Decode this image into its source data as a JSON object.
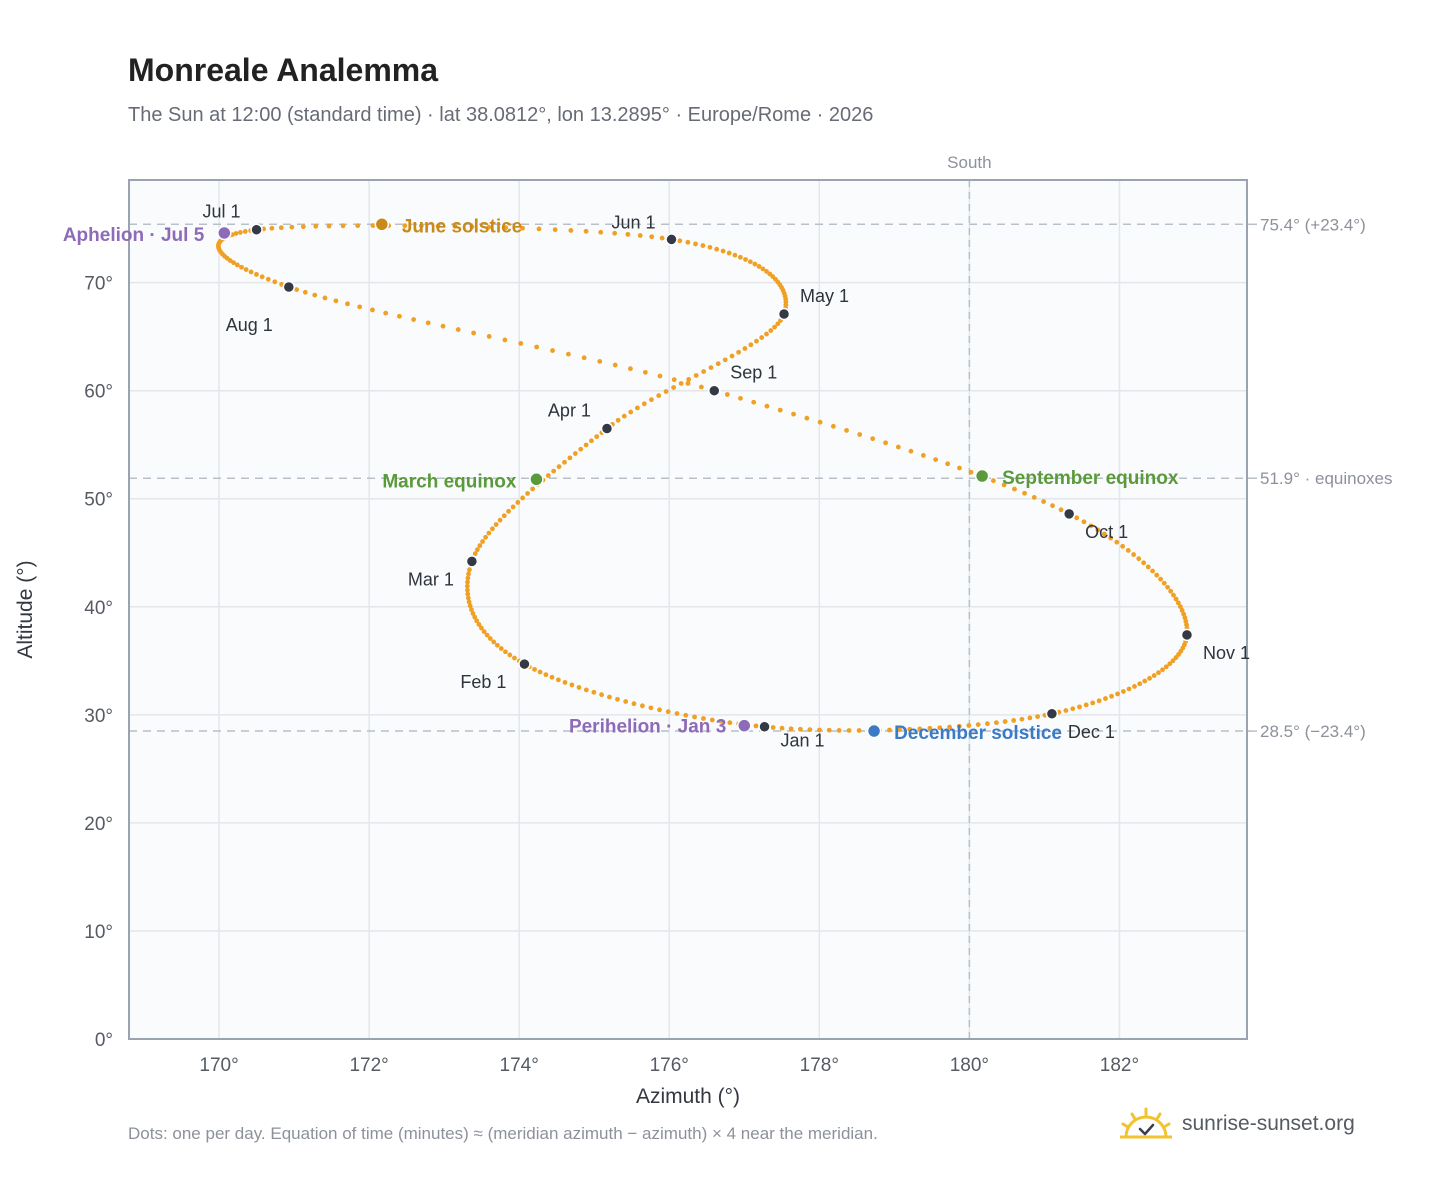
{
  "page": {
    "title": "Monreale Analemma",
    "subtitle": "The Sun at 12:00 (standard time) · lat 38.0812°, lon 13.2895° · Europe/Rome · 2026",
    "footnote": "Dots: one per day. Equation of time (minutes) ≈ (meridian azimuth − azimuth) × 4 near the meridian.",
    "brand": "sunrise-sunset.org",
    "brand_icon": "sun-check-logo-icon"
  },
  "chart_data": {
    "type": "scatter",
    "xlabel": "Azimuth (°)",
    "ylabel": "Altitude (°)",
    "xlim": [
      168.8,
      183.7
    ],
    "ylim": [
      0,
      79.5
    ],
    "xticks": [
      170,
      172,
      174,
      176,
      178,
      180,
      182
    ],
    "xtick_labels": [
      "170°",
      "172°",
      "174°",
      "176°",
      "178°",
      "180°",
      "182°"
    ],
    "yticks": [
      0,
      10,
      20,
      30,
      40,
      50,
      60,
      70
    ],
    "ytick_labels": [
      "0°",
      "10°",
      "20°",
      "30°",
      "40°",
      "50°",
      "60°",
      "70°"
    ],
    "grid": true,
    "south_line": {
      "azimuth": 180,
      "label": "South"
    },
    "reference_lines": [
      {
        "altitude": 75.4,
        "label": "75.4° (+23.4°)"
      },
      {
        "altitude": 51.9,
        "label": "51.9° · equinoxes"
      },
      {
        "altitude": 28.5,
        "label": "28.5° (−23.4°)"
      }
    ],
    "months": [
      {
        "label": "Jan 1",
        "azimuth": 177.27,
        "altitude": 28.9
      },
      {
        "label": "Feb 1",
        "azimuth": 174.07,
        "altitude": 34.7
      },
      {
        "label": "Mar 1",
        "azimuth": 173.37,
        "altitude": 44.2
      },
      {
        "label": "Apr 1",
        "azimuth": 175.17,
        "altitude": 56.5
      },
      {
        "label": "May 1",
        "azimuth": 177.53,
        "altitude": 67.1
      },
      {
        "label": "Jun 1",
        "azimuth": 176.03,
        "altitude": 74.0
      },
      {
        "label": "Jul 1",
        "azimuth": 170.5,
        "altitude": 74.9
      },
      {
        "label": "Aug 1",
        "azimuth": 170.93,
        "altitude": 69.6
      },
      {
        "label": "Sep 1",
        "azimuth": 176.6,
        "altitude": 60.0
      },
      {
        "label": "Oct 1",
        "azimuth": 181.33,
        "altitude": 48.6
      },
      {
        "label": "Nov 1",
        "azimuth": 182.9,
        "altitude": 37.4
      },
      {
        "label": "Dec 1",
        "azimuth": 181.1,
        "altitude": 30.1
      }
    ],
    "events": [
      {
        "label": "Perihelion · Jan 3",
        "azimuth": 177.0,
        "altitude": 29.0,
        "color": "#8e6bb8"
      },
      {
        "label": "March equinox",
        "azimuth": 174.23,
        "altitude": 51.8,
        "color": "#5a9a3a"
      },
      {
        "label": "June solstice",
        "azimuth": 172.17,
        "altitude": 75.4,
        "color": "#c98a1a"
      },
      {
        "label": "Aphelion · Jul 5",
        "azimuth": 170.07,
        "altitude": 74.6,
        "color": "#8e6bb8"
      },
      {
        "label": "September equinox",
        "azimuth": 180.17,
        "altitude": 52.1,
        "color": "#5a9a3a"
      },
      {
        "label": "December solstice",
        "azimuth": 178.73,
        "altitude": 28.5,
        "color": "#3b7ac4"
      }
    ],
    "colors": {
      "daily_dots": "#f0a023",
      "month_markers": "#343a45",
      "axis_frame": "#9aa3af",
      "grid": "#e3e7ec",
      "plot_bg": "#f9fbfd",
      "reference_line": "#b8c0ca"
    }
  }
}
